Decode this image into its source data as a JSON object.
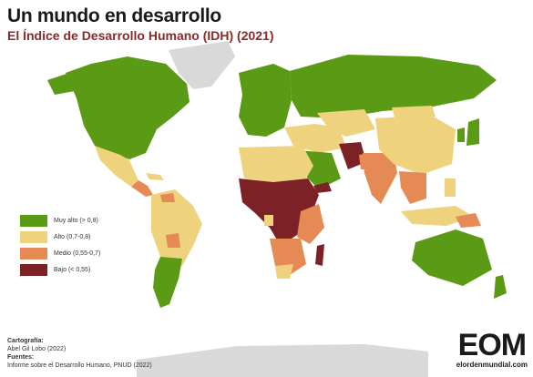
{
  "title": "Un mundo en desarrollo",
  "subtitle": "El Índice de Desarrollo Humano (IDH) (2021)",
  "colors": {
    "very_high": "#5b9a14",
    "high": "#efd27e",
    "medium": "#e58a55",
    "low": "#7c2226",
    "no_data": "#d9d9d9"
  },
  "legend": [
    {
      "label": "Muy alto (> 0,8)",
      "color": "#5b9a14"
    },
    {
      "label": "Alto (0,7-0,8)",
      "color": "#efd27e"
    },
    {
      "label": "Medio (0,55-0,7)",
      "color": "#e58a55"
    },
    {
      "label": "Bajo (< 0,55)",
      "color": "#7c2226"
    }
  ],
  "credits": {
    "cartography_heading": "Cartografía:",
    "cartography_author": "Abel Gil Lobo (2022)",
    "sources_heading": "Fuentes:",
    "sources_text": "Informe sobre el Desarrollo Humano, PNUD (2022)"
  },
  "brand": {
    "logo": "EOM",
    "url": "elordenmundial.com"
  }
}
